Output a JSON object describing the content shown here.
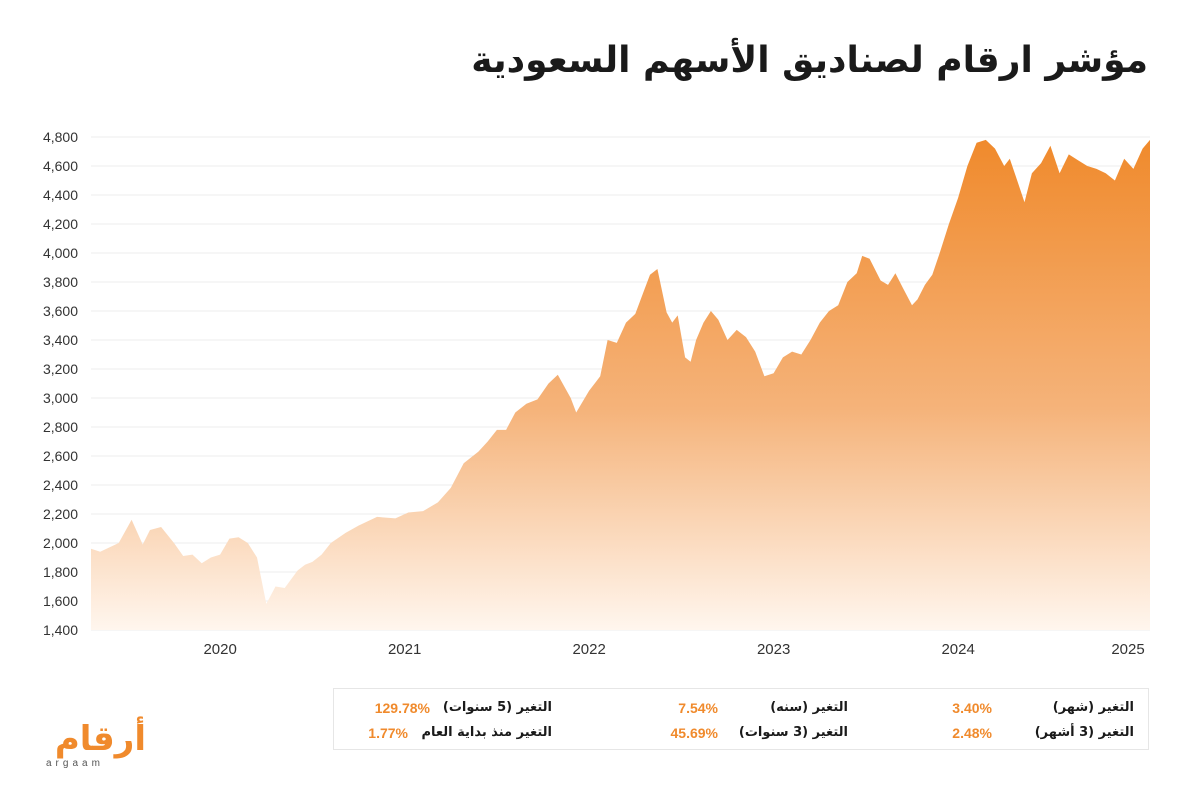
{
  "title": "مؤشر ارقام لصناديق الأسهم السعودية",
  "colors": {
    "accent": "#f08a2c",
    "fill_top": "#f08a2c",
    "fill_bottom": "#fff6ee",
    "grid": "#ececec"
  },
  "chart_data": {
    "type": "area",
    "title": "مؤشر ارقام لصناديق الأسهم السعودية",
    "xlabel": "",
    "ylabel": "",
    "ylim": [
      1400,
      4800
    ],
    "xlim": [
      2019.4,
      2025.14
    ],
    "y_ticks": [
      "1,400",
      "1,600",
      "1,800",
      "2,000",
      "2,200",
      "2,400",
      "2,600",
      "2,800",
      "3,000",
      "3,200",
      "3,400",
      "3,600",
      "3,800",
      "4,000",
      "4,200",
      "4,400",
      "4,600",
      "4,800"
    ],
    "x_ticks": [
      "2020",
      "2021",
      "2022",
      "2023",
      "2024",
      "2025"
    ],
    "grid": "horizontal",
    "legend": "none",
    "series": [
      {
        "x": [
          2019.4,
          2019.45,
          2019.55,
          2019.62,
          2019.68,
          2019.72,
          2019.78,
          2019.85,
          2019.9,
          2019.95,
          2020.0,
          2020.05,
          2020.1,
          2020.15,
          2020.2,
          2020.25,
          2020.3,
          2020.35,
          2020.4,
          2020.45,
          2020.52,
          2020.56,
          2020.6,
          2020.65,
          2020.7,
          2020.78,
          2020.85,
          2020.95,
          2021.05,
          2021.12,
          2021.2,
          2021.28,
          2021.35,
          2021.42,
          2021.5,
          2021.55,
          2021.6,
          2021.65,
          2021.7,
          2021.76,
          2021.82,
          2021.88,
          2021.93,
          2022.0,
          2022.03,
          2022.1,
          2022.16,
          2022.2,
          2022.25,
          2022.3,
          2022.35,
          2022.4,
          2022.43,
          2022.47,
          2022.52,
          2022.55,
          2022.58,
          2022.62,
          2022.65,
          2022.68,
          2022.72,
          2022.76,
          2022.8,
          2022.85,
          2022.9,
          2022.95,
          2023.0,
          2023.05,
          2023.1,
          2023.15,
          2023.2,
          2023.25,
          2023.3,
          2023.35,
          2023.4,
          2023.45,
          2023.5,
          2023.55,
          2023.58,
          2023.62,
          2023.68,
          2023.72,
          2023.76,
          2023.8,
          2023.85,
          2023.88,
          2023.92,
          2023.96,
          2024.0,
          2024.05,
          2024.1,
          2024.15,
          2024.2,
          2024.25,
          2024.3,
          2024.35,
          2024.38,
          2024.42,
          2024.46,
          2024.5,
          2024.55,
          2024.6,
          2024.65,
          2024.7,
          2024.75,
          2024.8,
          2024.85,
          2024.9,
          2024.95,
          2025.0,
          2025.05,
          2025.1,
          2025.14
        ],
        "y": [
          1960,
          1940,
          2000,
          2160,
          1990,
          2090,
          2110,
          2000,
          1910,
          1920,
          1860,
          1900,
          1920,
          2030,
          2040,
          2000,
          1900,
          1580,
          1700,
          1690,
          1810,
          1850,
          1870,
          1920,
          2000,
          2070,
          2120,
          2180,
          2170,
          2210,
          2220,
          2280,
          2380,
          2550,
          2630,
          2700,
          2780,
          2780,
          2900,
          2960,
          2990,
          3100,
          3160,
          3000,
          2900,
          3050,
          3150,
          3400,
          3380,
          3520,
          3580,
          3750,
          3850,
          3890,
          3590,
          3520,
          3570,
          3280,
          3250,
          3400,
          3520,
          3600,
          3540,
          3400,
          3470,
          3420,
          3320,
          3150,
          3170,
          3280,
          3320,
          3300,
          3400,
          3520,
          3600,
          3640,
          3800,
          3860,
          3980,
          3960,
          3810,
          3780,
          3860,
          3760,
          3640,
          3680,
          3780,
          3850,
          4000,
          4200,
          4380,
          4600,
          4760,
          4780,
          4720,
          4600,
          4650,
          4500,
          4350,
          4550,
          4620,
          4740,
          4550,
          4680,
          4640,
          4600,
          4580,
          4550,
          4500,
          4650,
          4580,
          4720,
          4780
        ]
      }
    ]
  },
  "stats": {
    "row1": [
      {
        "label": "التغير (شهر)",
        "value": "3.40%"
      },
      {
        "label": "التغير (سنه)",
        "value": "7.54%"
      },
      {
        "label": "التغير (5 سنوات)",
        "value": "129.78%"
      }
    ],
    "row2": [
      {
        "label": "التغير (3 أشهر)",
        "value": "2.48%"
      },
      {
        "label": "التغير (3 سنوات)",
        "value": "45.69%"
      },
      {
        "label": "التغير منذ بداية العام",
        "value": "1.77%"
      }
    ]
  },
  "logo": {
    "main": "أرقام",
    "sub": "argaam"
  }
}
